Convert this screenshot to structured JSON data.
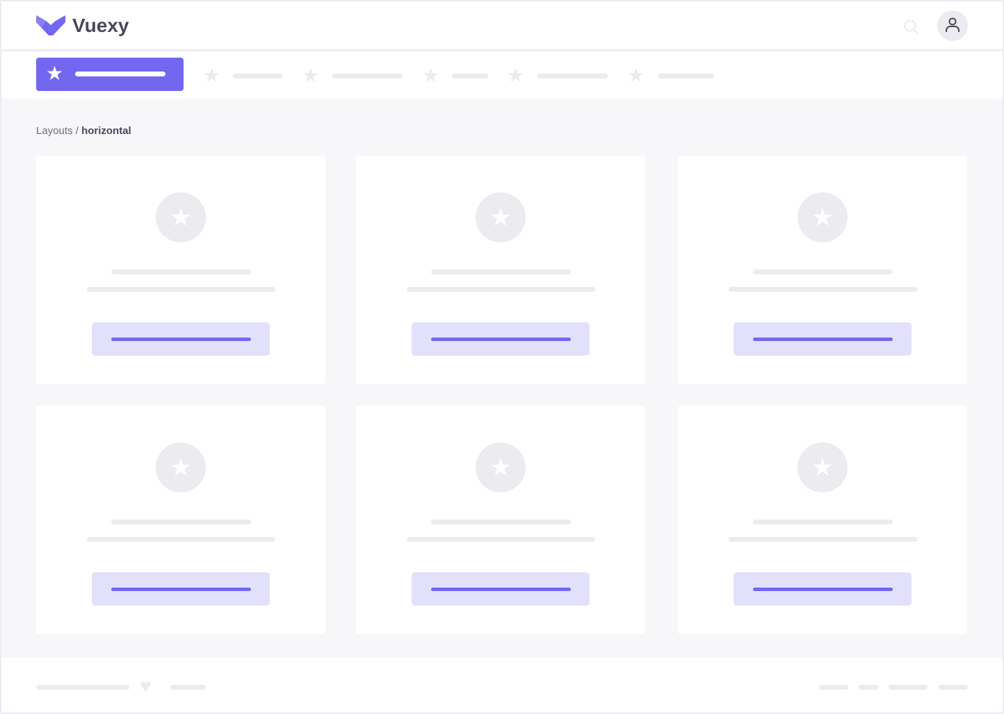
{
  "brand": {
    "name": "Vuexy",
    "accent": "#7367f0"
  },
  "header": {
    "search_icon": "search-icon",
    "user_icon": "user-icon"
  },
  "nav": {
    "active_icon": "star-icon",
    "items": 5
  },
  "breadcrumb": {
    "parent": "Layouts",
    "separator": " / ",
    "current": "horizontal"
  },
  "cards": [
    {
      "icon": "star-icon"
    },
    {
      "icon": "star-icon"
    },
    {
      "icon": "star-icon"
    },
    {
      "icon": "star-icon"
    },
    {
      "icon": "star-icon"
    },
    {
      "icon": "star-icon"
    }
  ],
  "footer": {
    "icon": "heart-icon"
  }
}
